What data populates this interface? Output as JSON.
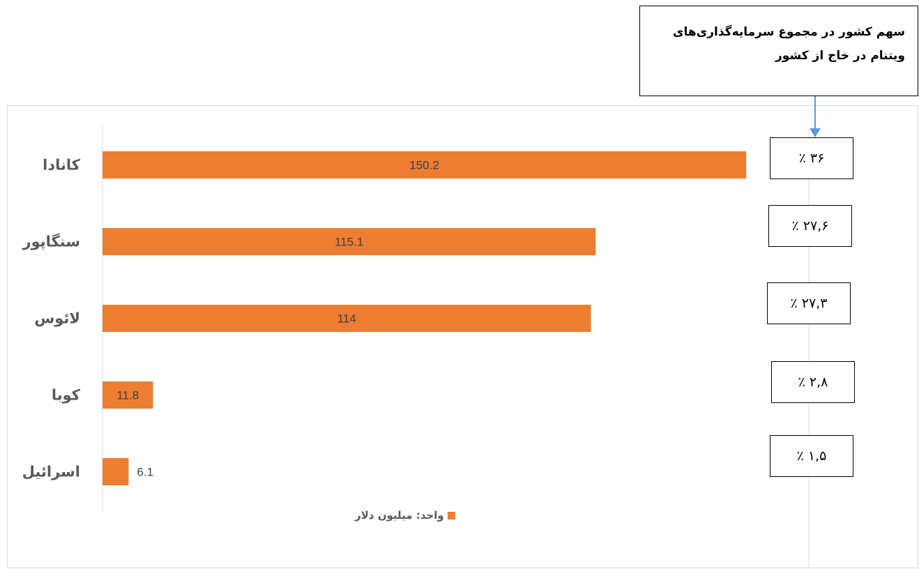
{
  "callout": {
    "line1": "سهم کشور در مجموع سرمایه‌گذاری‌های",
    "line2": "ویتنام در خاج از کشور"
  },
  "legend": {
    "label": "واحد: میلیون دلار"
  },
  "colors": {
    "bar": "#ed7d31",
    "arrow": "#5b9bd5",
    "axis": "#d9d9d9"
  },
  "chart_data": {
    "type": "bar",
    "orientation": "horizontal",
    "categories": [
      "کانادا",
      "سنگاپور",
      "لائوس",
      "کوبا",
      "اسرائیل"
    ],
    "series": [
      {
        "name": "واحد: میلیون دلار",
        "values": [
          150.2,
          115.1,
          114,
          11.8,
          6.1
        ]
      }
    ],
    "value_labels": [
      "150.2",
      "115.1",
      "114",
      "11.8",
      "6.1"
    ],
    "xlim": [
      0,
      150.2
    ],
    "grid": false,
    "legend_position": "bottom",
    "share_labels": [
      "٪ ۳۶",
      "٪ ۲۷,۶",
      "٪ ۲۷,۳",
      "٪ ۲,۸",
      "٪ ۱,۵"
    ]
  }
}
